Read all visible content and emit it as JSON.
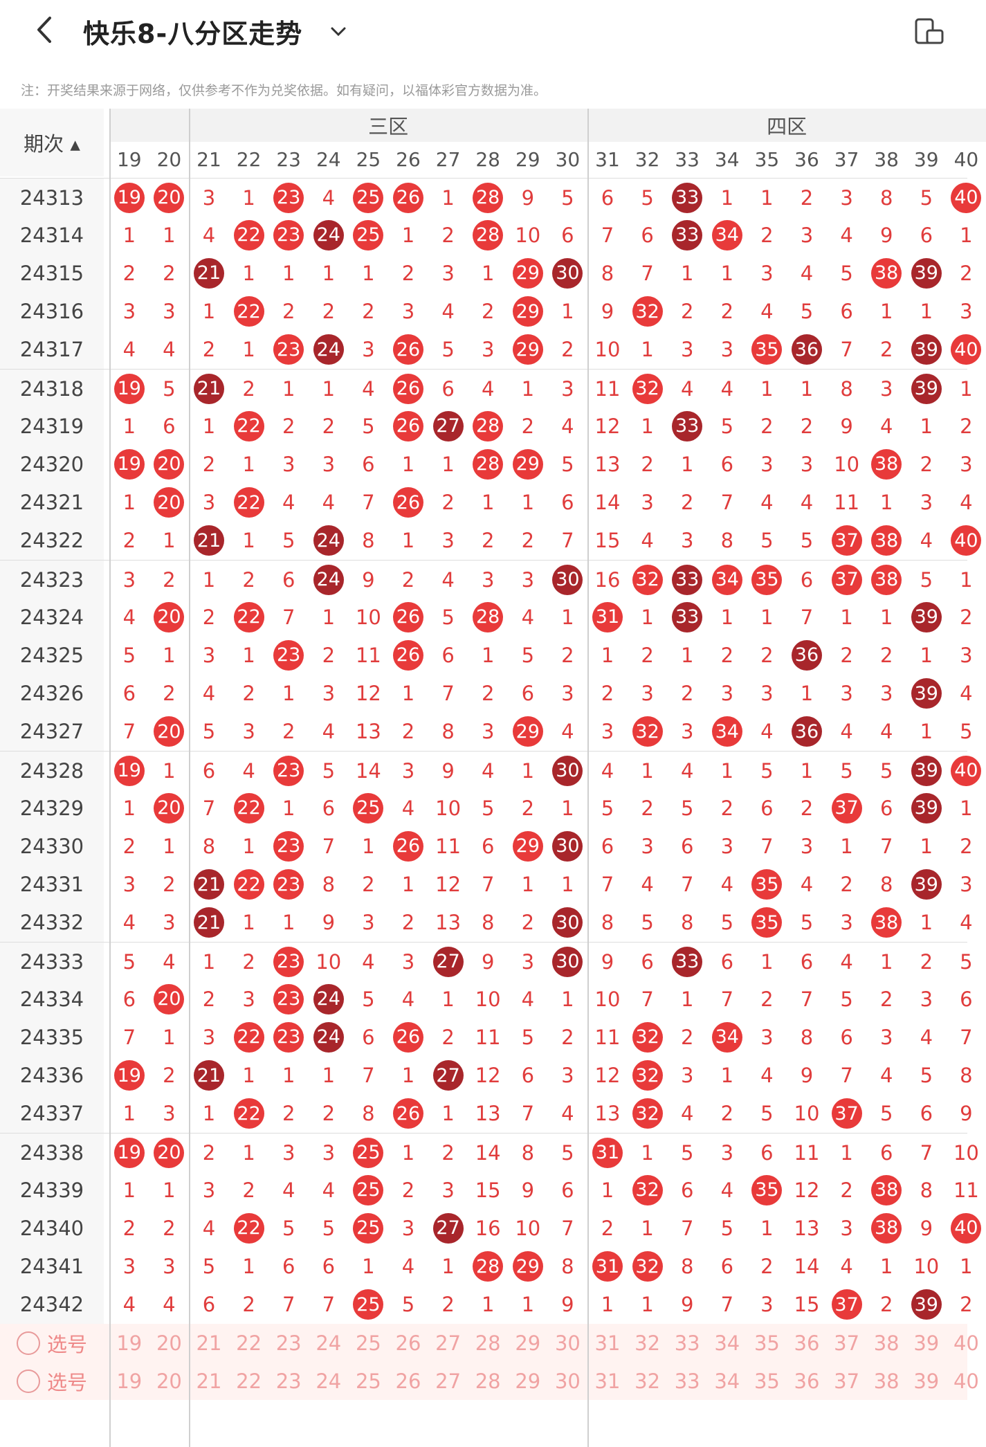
{
  "header": {
    "title": "快乐8-八分区走势"
  },
  "notice": "注：开奖结果来源于网络，仅供参考不作为兑奖依据。如有疑问，以福体彩官方数据为准。",
  "table": {
    "period_label": "期次",
    "zone3": "三区",
    "zone4": "四区",
    "columns": [
      "19",
      "20",
      "21",
      "22",
      "23",
      "24",
      "25",
      "26",
      "27",
      "28",
      "29",
      "30",
      "31",
      "32",
      "33",
      "34",
      "35",
      "36",
      "37",
      "38",
      "39",
      "40"
    ],
    "rows": [
      {
        "p": "24313",
        "v": [
          "19",
          "20",
          "3",
          "1",
          "23",
          "4",
          "25",
          "26",
          "1",
          "28",
          "9",
          "5",
          "6",
          "5",
          "33",
          "1",
          "1",
          "2",
          "3",
          "8",
          "5",
          "40"
        ]
      },
      {
        "p": "24314",
        "v": [
          "1",
          "1",
          "4",
          "22",
          "23",
          "24",
          "25",
          "1",
          "2",
          "28",
          "10",
          "6",
          "7",
          "6",
          "33",
          "34",
          "2",
          "3",
          "4",
          "9",
          "6",
          "1"
        ]
      },
      {
        "p": "24315",
        "v": [
          "2",
          "2",
          "21",
          "1",
          "1",
          "1",
          "1",
          "2",
          "3",
          "1",
          "29",
          "30",
          "8",
          "7",
          "1",
          "1",
          "3",
          "4",
          "5",
          "38",
          "39",
          "2"
        ]
      },
      {
        "p": "24316",
        "v": [
          "3",
          "3",
          "1",
          "22",
          "2",
          "2",
          "2",
          "3",
          "4",
          "2",
          "29",
          "1",
          "9",
          "32",
          "2",
          "2",
          "4",
          "5",
          "6",
          "1",
          "1",
          "3"
        ]
      },
      {
        "p": "24317",
        "v": [
          "4",
          "4",
          "2",
          "1",
          "23",
          "24",
          "3",
          "26",
          "5",
          "3",
          "29",
          "2",
          "10",
          "1",
          "3",
          "3",
          "35",
          "36",
          "7",
          "2",
          "39",
          "40"
        ]
      },
      {
        "p": "24318",
        "v": [
          "19",
          "5",
          "21",
          "2",
          "1",
          "1",
          "4",
          "26",
          "6",
          "4",
          "1",
          "3",
          "11",
          "32",
          "4",
          "4",
          "1",
          "1",
          "8",
          "3",
          "39",
          "1"
        ]
      },
      {
        "p": "24319",
        "v": [
          "1",
          "6",
          "1",
          "22",
          "2",
          "2",
          "5",
          "26",
          "27",
          "28",
          "2",
          "4",
          "12",
          "1",
          "33",
          "5",
          "2",
          "2",
          "9",
          "4",
          "1",
          "2"
        ]
      },
      {
        "p": "24320",
        "v": [
          "19",
          "20",
          "2",
          "1",
          "3",
          "3",
          "6",
          "1",
          "1",
          "28",
          "29",
          "5",
          "13",
          "2",
          "1",
          "6",
          "3",
          "3",
          "10",
          "38",
          "2",
          "3"
        ]
      },
      {
        "p": "24321",
        "v": [
          "1",
          "20",
          "3",
          "22",
          "4",
          "4",
          "7",
          "26",
          "2",
          "1",
          "1",
          "6",
          "14",
          "3",
          "2",
          "7",
          "4",
          "4",
          "11",
          "1",
          "3",
          "4"
        ]
      },
      {
        "p": "24322",
        "v": [
          "2",
          "1",
          "21",
          "1",
          "5",
          "24",
          "8",
          "1",
          "3",
          "2",
          "2",
          "7",
          "15",
          "4",
          "3",
          "8",
          "5",
          "5",
          "37",
          "38",
          "4",
          "40"
        ]
      },
      {
        "p": "24323",
        "v": [
          "3",
          "2",
          "1",
          "2",
          "6",
          "24",
          "9",
          "2",
          "4",
          "3",
          "3",
          "30",
          "16",
          "32",
          "33",
          "34",
          "35",
          "6",
          "37",
          "38",
          "5",
          "1"
        ]
      },
      {
        "p": "24324",
        "v": [
          "4",
          "20",
          "2",
          "22",
          "7",
          "1",
          "10",
          "26",
          "5",
          "28",
          "4",
          "1",
          "31",
          "1",
          "33",
          "1",
          "1",
          "7",
          "1",
          "1",
          "39",
          "2"
        ]
      },
      {
        "p": "24325",
        "v": [
          "5",
          "1",
          "3",
          "1",
          "23",
          "2",
          "11",
          "26",
          "6",
          "1",
          "5",
          "2",
          "1",
          "2",
          "1",
          "2",
          "2",
          "36",
          "2",
          "2",
          "1",
          "3"
        ]
      },
      {
        "p": "24326",
        "v": [
          "6",
          "2",
          "4",
          "2",
          "1",
          "3",
          "12",
          "1",
          "7",
          "2",
          "6",
          "3",
          "2",
          "3",
          "2",
          "3",
          "3",
          "1",
          "3",
          "3",
          "39",
          "4"
        ]
      },
      {
        "p": "24327",
        "v": [
          "7",
          "20",
          "5",
          "3",
          "2",
          "4",
          "13",
          "2",
          "8",
          "3",
          "29",
          "4",
          "3",
          "32",
          "3",
          "34",
          "4",
          "36",
          "4",
          "4",
          "1",
          "5"
        ]
      },
      {
        "p": "24328",
        "v": [
          "19",
          "1",
          "6",
          "4",
          "23",
          "5",
          "14",
          "3",
          "9",
          "4",
          "1",
          "30",
          "4",
          "1",
          "4",
          "1",
          "5",
          "1",
          "5",
          "5",
          "39",
          "40"
        ]
      },
      {
        "p": "24329",
        "v": [
          "1",
          "20",
          "7",
          "22",
          "1",
          "6",
          "25",
          "4",
          "10",
          "5",
          "2",
          "1",
          "5",
          "2",
          "5",
          "2",
          "6",
          "2",
          "37",
          "6",
          "39",
          "1"
        ]
      },
      {
        "p": "24330",
        "v": [
          "2",
          "1",
          "8",
          "1",
          "23",
          "7",
          "1",
          "26",
          "11",
          "6",
          "29",
          "30",
          "6",
          "3",
          "6",
          "3",
          "7",
          "3",
          "1",
          "7",
          "1",
          "2"
        ]
      },
      {
        "p": "24331",
        "v": [
          "3",
          "2",
          "21",
          "22",
          "23",
          "8",
          "2",
          "1",
          "12",
          "7",
          "1",
          "1",
          "7",
          "4",
          "7",
          "4",
          "35",
          "4",
          "2",
          "8",
          "39",
          "3"
        ]
      },
      {
        "p": "24332",
        "v": [
          "4",
          "3",
          "21",
          "1",
          "1",
          "9",
          "3",
          "2",
          "13",
          "8",
          "2",
          "30",
          "8",
          "5",
          "8",
          "5",
          "35",
          "5",
          "3",
          "38",
          "1",
          "4"
        ]
      },
      {
        "p": "24333",
        "v": [
          "5",
          "4",
          "1",
          "2",
          "23",
          "10",
          "4",
          "3",
          "27",
          "9",
          "3",
          "30",
          "9",
          "6",
          "33",
          "6",
          "1",
          "6",
          "4",
          "1",
          "2",
          "5"
        ]
      },
      {
        "p": "24334",
        "v": [
          "6",
          "20",
          "2",
          "3",
          "23",
          "24",
          "5",
          "4",
          "1",
          "10",
          "4",
          "1",
          "10",
          "7",
          "1",
          "7",
          "2",
          "7",
          "5",
          "2",
          "3",
          "6"
        ]
      },
      {
        "p": "24335",
        "v": [
          "7",
          "1",
          "3",
          "22",
          "23",
          "24",
          "6",
          "26",
          "2",
          "11",
          "5",
          "2",
          "11",
          "32",
          "2",
          "34",
          "3",
          "8",
          "6",
          "3",
          "4",
          "7"
        ]
      },
      {
        "p": "24336",
        "v": [
          "19",
          "2",
          "21",
          "1",
          "1",
          "1",
          "7",
          "1",
          "27",
          "12",
          "6",
          "3",
          "12",
          "32",
          "3",
          "1",
          "4",
          "9",
          "7",
          "4",
          "5",
          "8"
        ]
      },
      {
        "p": "24337",
        "v": [
          "1",
          "3",
          "1",
          "22",
          "2",
          "2",
          "8",
          "26",
          "1",
          "13",
          "7",
          "4",
          "13",
          "32",
          "4",
          "2",
          "5",
          "10",
          "37",
          "5",
          "6",
          "9"
        ]
      },
      {
        "p": "24338",
        "v": [
          "19",
          "20",
          "2",
          "1",
          "3",
          "3",
          "25",
          "1",
          "2",
          "14",
          "8",
          "5",
          "31",
          "1",
          "5",
          "3",
          "6",
          "11",
          "1",
          "6",
          "7",
          "10"
        ]
      },
      {
        "p": "24339",
        "v": [
          "1",
          "1",
          "3",
          "2",
          "4",
          "4",
          "25",
          "2",
          "3",
          "15",
          "9",
          "6",
          "1",
          "32",
          "6",
          "4",
          "35",
          "12",
          "2",
          "38",
          "8",
          "11"
        ]
      },
      {
        "p": "24340",
        "v": [
          "2",
          "2",
          "4",
          "22",
          "5",
          "5",
          "25",
          "3",
          "27",
          "16",
          "10",
          "7",
          "2",
          "1",
          "7",
          "5",
          "1",
          "13",
          "3",
          "38",
          "9",
          "40"
        ]
      },
      {
        "p": "24341",
        "v": [
          "3",
          "3",
          "5",
          "1",
          "6",
          "6",
          "1",
          "4",
          "1",
          "28",
          "29",
          "8",
          "31",
          "32",
          "8",
          "6",
          "2",
          "14",
          "4",
          "1",
          "10",
          "1"
        ]
      },
      {
        "p": "24342",
        "v": [
          "4",
          "4",
          "6",
          "2",
          "7",
          "7",
          "25",
          "5",
          "2",
          "1",
          "1",
          "9",
          "1",
          "1",
          "9",
          "7",
          "3",
          "15",
          "37",
          "2",
          "39",
          "2"
        ]
      }
    ],
    "select_label": "选号"
  }
}
